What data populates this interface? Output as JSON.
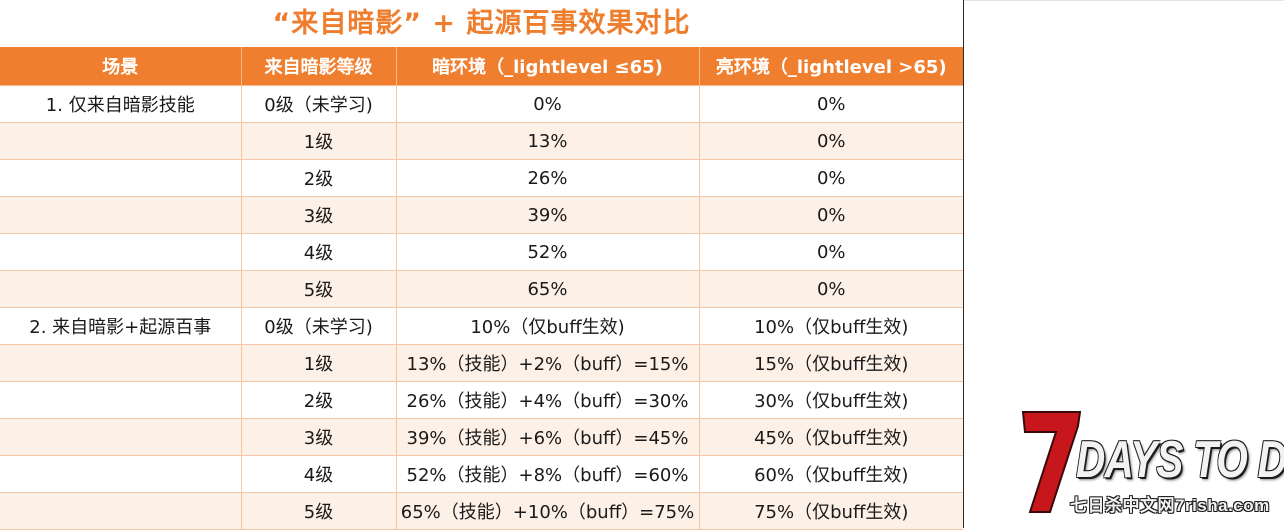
{
  "title": "“来自暗影” + 起源百事效果对比",
  "table": {
    "headers": [
      "场景",
      "来自暗影等级",
      "暗环境（_lightlevel ≤65)",
      "亮环境（_lightlevel >65)"
    ],
    "rows": [
      {
        "scene": "1. 仅来自暗影技能",
        "level": "0级（未学习)",
        "dark": "0%",
        "bright": "0%"
      },
      {
        "scene": "",
        "level": "1级",
        "dark": "13%",
        "bright": "0%"
      },
      {
        "scene": "",
        "level": "2级",
        "dark": "26%",
        "bright": "0%"
      },
      {
        "scene": "",
        "level": "3级",
        "dark": "39%",
        "bright": "0%"
      },
      {
        "scene": "",
        "level": "4级",
        "dark": "52%",
        "bright": "0%"
      },
      {
        "scene": "",
        "level": "5级",
        "dark": "65%",
        "bright": "0%"
      },
      {
        "scene": "2. 来自暗影+起源百事",
        "level": "0级（未学习)",
        "dark": "10%（仅buff生效)",
        "bright": "10%（仅buff生效)"
      },
      {
        "scene": "",
        "level": "1级",
        "dark": "13%（技能）+2%（buff）=15%",
        "bright": "15%（仅buff生效)"
      },
      {
        "scene": "",
        "level": "2级",
        "dark": "26%（技能）+4%（buff）=30%",
        "bright": "30%（仅buff生效)"
      },
      {
        "scene": "",
        "level": "3级",
        "dark": "39%（技能）+6%（buff）=45%",
        "bright": "45%（仅buff生效)"
      },
      {
        "scene": "",
        "level": "4级",
        "dark": "52%（技能）+8%（buff）=60%",
        "bright": "60%（仅buff生效)"
      },
      {
        "scene": "",
        "level": "5级",
        "dark": "65%（技能）+10%（buff）=75%",
        "bright": "75%（仅buff生效)"
      }
    ]
  },
  "watermark": {
    "mark": "7",
    "text": "DAYS TO DIE",
    "sub": "七日杀中文网7risha.com"
  },
  "colors": {
    "accent": "#ef7f2f",
    "title": "#ee7e2d",
    "row_alt": "#fdf0e6",
    "logo_red": "#c8161d"
  }
}
